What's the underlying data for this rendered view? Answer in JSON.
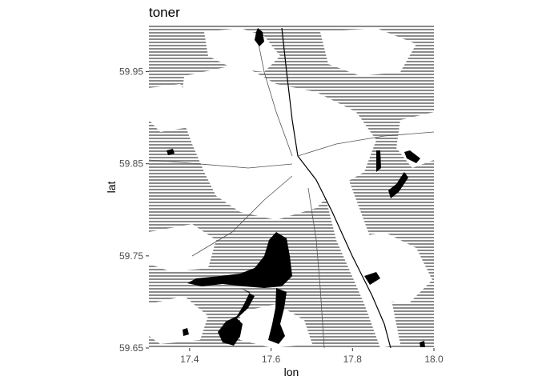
{
  "title": "toner",
  "chart_data": {
    "type": "map",
    "title": "toner",
    "xlabel": "lon",
    "ylabel": "lat",
    "xlim": [
      17.3,
      18.0
    ],
    "ylim": [
      59.65,
      60.0
    ],
    "x_ticks": [
      17.4,
      17.6,
      17.8,
      18.0
    ],
    "x_tick_labels": [
      "17.4",
      "17.6",
      "17.8",
      "18.0"
    ],
    "y_ticks": [
      59.65,
      59.75,
      59.85,
      59.95
    ],
    "y_tick_labels": [
      "59.65",
      "59.75",
      "59.85",
      "59.95"
    ],
    "tile_style": "toner",
    "colors": {
      "land_hatch": "#8a8a8a",
      "water": "#000000",
      "background": "#ffffff",
      "tick": "#333333"
    }
  }
}
